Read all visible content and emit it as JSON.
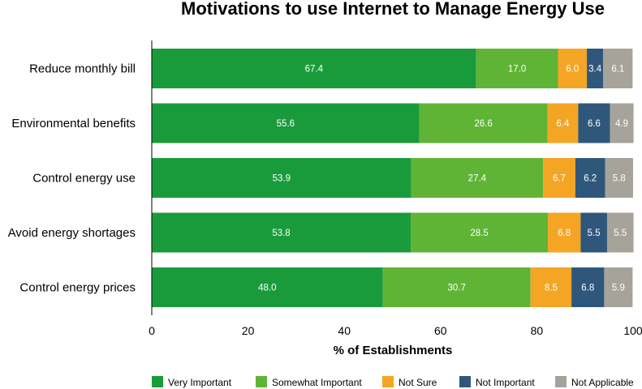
{
  "chart_data": {
    "type": "bar",
    "orientation": "horizontal",
    "stacked": true,
    "title": "Motivations to use Internet to Manage Energy Use",
    "xlabel": "% of Establishments",
    "ylabel": "",
    "xlim": [
      0,
      100
    ],
    "xticks": [
      0,
      20,
      40,
      60,
      80,
      100
    ],
    "grid": false,
    "legend_position": "bottom",
    "categories": [
      "Reduce monthly bill",
      "Environmental benefits",
      "Control energy use",
      "Avoid energy shortages",
      "Control energy prices"
    ],
    "series": [
      {
        "name": "Very Important",
        "color": "#1a9b3b",
        "values": [
          67.4,
          55.6,
          53.9,
          53.8,
          48.0
        ]
      },
      {
        "name": "Somewhat Important",
        "color": "#5fb436",
        "values": [
          17.0,
          26.6,
          27.4,
          28.5,
          30.7
        ]
      },
      {
        "name": "Not Sure",
        "color": "#f5a524",
        "values": [
          6.0,
          6.4,
          6.7,
          6.8,
          8.5
        ]
      },
      {
        "name": "Not Important",
        "color": "#2f577b",
        "values": [
          3.4,
          6.6,
          6.2,
          5.5,
          6.8
        ]
      },
      {
        "name": "Not Applicable",
        "color": "#a6a39a",
        "values": [
          6.1,
          4.9,
          5.8,
          5.5,
          5.9
        ]
      }
    ]
  }
}
